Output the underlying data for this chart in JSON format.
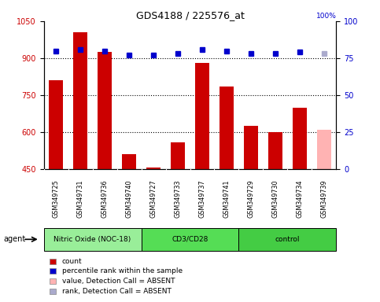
{
  "title": "GDS4188 / 225576_at",
  "samples": [
    "GSM349725",
    "GSM349731",
    "GSM349736",
    "GSM349740",
    "GSM349727",
    "GSM349733",
    "GSM349737",
    "GSM349741",
    "GSM349729",
    "GSM349730",
    "GSM349734",
    "GSM349739"
  ],
  "bar_values": [
    810,
    1005,
    925,
    510,
    455,
    560,
    880,
    785,
    625,
    600,
    700,
    610
  ],
  "bar_colors": [
    "#cc0000",
    "#cc0000",
    "#cc0000",
    "#cc0000",
    "#cc0000",
    "#cc0000",
    "#cc0000",
    "#cc0000",
    "#cc0000",
    "#cc0000",
    "#cc0000",
    "#ffb3b3"
  ],
  "dot_values": [
    80,
    81,
    80,
    77,
    77,
    78,
    81,
    80,
    78,
    78,
    79,
    78
  ],
  "dot_absent": [
    false,
    false,
    false,
    false,
    false,
    false,
    false,
    false,
    false,
    false,
    false,
    true
  ],
  "dot_color_normal": "#0000cc",
  "dot_color_absent": "#aaaacc",
  "ylim_left": [
    450,
    1050
  ],
  "ylim_right": [
    0,
    100
  ],
  "yticks_left": [
    450,
    600,
    750,
    900,
    1050
  ],
  "yticks_right": [
    0,
    25,
    50,
    75,
    100
  ],
  "groups": [
    {
      "label": "Nitric Oxide (NOC-18)",
      "start": 0,
      "end": 4,
      "color": "#99ee99"
    },
    {
      "label": "CD3/CD28",
      "start": 4,
      "end": 8,
      "color": "#55dd55"
    },
    {
      "label": "control",
      "start": 8,
      "end": 12,
      "color": "#44cc44"
    }
  ],
  "agent_label": "agent",
  "background_color": "#ffffff",
  "plot_bg_color": "#ffffff",
  "bar_bottom": 450,
  "legend_items": [
    {
      "label": "count",
      "color": "#cc0000"
    },
    {
      "label": "percentile rank within the sample",
      "color": "#0000cc"
    },
    {
      "label": "value, Detection Call = ABSENT",
      "color": "#ffb3b3"
    },
    {
      "label": "rank, Detection Call = ABSENT",
      "color": "#aaaacc"
    }
  ]
}
